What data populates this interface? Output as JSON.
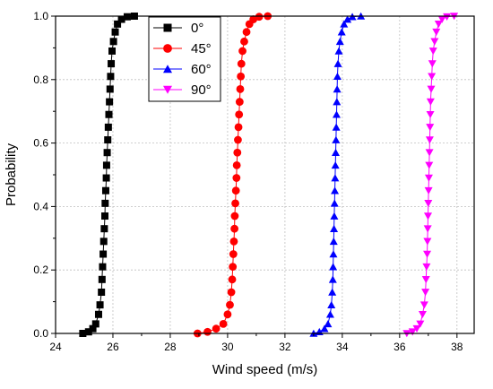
{
  "chart_data": {
    "type": "line",
    "xlabel": "Wind speed (m/s)",
    "ylabel": "Probability",
    "xlim": [
      24,
      38.6
    ],
    "ylim": [
      0.0,
      1.0
    ],
    "x_ticks": [
      "24",
      "26",
      "28",
      "30",
      "32",
      "34",
      "36",
      "38"
    ],
    "y_ticks": [
      "0.0",
      "0.2",
      "0.4",
      "0.6",
      "0.8",
      "1.0"
    ],
    "grid": true,
    "legend_position": "top-left inside plot",
    "series": [
      {
        "name": "0°",
        "color": "#000000",
        "marker": "square",
        "points": [
          [
            24.95,
            0.0
          ],
          [
            25.15,
            0.005
          ],
          [
            25.3,
            0.015
          ],
          [
            25.4,
            0.03
          ],
          [
            25.5,
            0.06
          ],
          [
            25.55,
            0.09
          ],
          [
            25.6,
            0.13
          ],
          [
            25.62,
            0.17
          ],
          [
            25.64,
            0.21
          ],
          [
            25.66,
            0.25
          ],
          [
            25.68,
            0.29
          ],
          [
            25.7,
            0.33
          ],
          [
            25.72,
            0.37
          ],
          [
            25.73,
            0.41
          ],
          [
            25.75,
            0.45
          ],
          [
            25.77,
            0.49
          ],
          [
            25.78,
            0.53
          ],
          [
            25.8,
            0.57
          ],
          [
            25.82,
            0.61
          ],
          [
            25.84,
            0.65
          ],
          [
            25.86,
            0.69
          ],
          [
            25.88,
            0.73
          ],
          [
            25.9,
            0.77
          ],
          [
            25.92,
            0.81
          ],
          [
            25.94,
            0.85
          ],
          [
            25.97,
            0.89
          ],
          [
            26.02,
            0.92
          ],
          [
            26.08,
            0.95
          ],
          [
            26.16,
            0.975
          ],
          [
            26.3,
            0.99
          ],
          [
            26.5,
            0.998
          ],
          [
            26.75,
            1.0
          ]
        ]
      },
      {
        "name": "45°",
        "color": "#ff0000",
        "marker": "circle",
        "points": [
          [
            28.95,
            0.0
          ],
          [
            29.3,
            0.005
          ],
          [
            29.6,
            0.015
          ],
          [
            29.85,
            0.03
          ],
          [
            30.0,
            0.06
          ],
          [
            30.08,
            0.09
          ],
          [
            30.13,
            0.13
          ],
          [
            30.16,
            0.17
          ],
          [
            30.18,
            0.21
          ],
          [
            30.2,
            0.25
          ],
          [
            30.22,
            0.29
          ],
          [
            30.24,
            0.33
          ],
          [
            30.25,
            0.37
          ],
          [
            30.27,
            0.41
          ],
          [
            30.29,
            0.45
          ],
          [
            30.31,
            0.49
          ],
          [
            30.32,
            0.53
          ],
          [
            30.34,
            0.57
          ],
          [
            30.36,
            0.61
          ],
          [
            30.38,
            0.65
          ],
          [
            30.4,
            0.69
          ],
          [
            30.42,
            0.73
          ],
          [
            30.44,
            0.77
          ],
          [
            30.46,
            0.81
          ],
          [
            30.48,
            0.85
          ],
          [
            30.52,
            0.89
          ],
          [
            30.58,
            0.92
          ],
          [
            30.66,
            0.95
          ],
          [
            30.76,
            0.975
          ],
          [
            30.9,
            0.99
          ],
          [
            31.1,
            0.998
          ],
          [
            31.4,
            1.0
          ]
        ]
      },
      {
        "name": "60°",
        "color": "#0000ff",
        "marker": "triangle-up",
        "points": [
          [
            33.0,
            0.0
          ],
          [
            33.2,
            0.005
          ],
          [
            33.38,
            0.015
          ],
          [
            33.5,
            0.03
          ],
          [
            33.58,
            0.06
          ],
          [
            33.62,
            0.09
          ],
          [
            33.65,
            0.13
          ],
          [
            33.67,
            0.17
          ],
          [
            33.68,
            0.21
          ],
          [
            33.69,
            0.25
          ],
          [
            33.7,
            0.29
          ],
          [
            33.71,
            0.33
          ],
          [
            33.72,
            0.37
          ],
          [
            33.73,
            0.41
          ],
          [
            33.74,
            0.45
          ],
          [
            33.75,
            0.49
          ],
          [
            33.76,
            0.53
          ],
          [
            33.77,
            0.57
          ],
          [
            33.78,
            0.61
          ],
          [
            33.79,
            0.65
          ],
          [
            33.8,
            0.69
          ],
          [
            33.81,
            0.73
          ],
          [
            33.82,
            0.77
          ],
          [
            33.83,
            0.81
          ],
          [
            33.85,
            0.85
          ],
          [
            33.88,
            0.89
          ],
          [
            33.92,
            0.92
          ],
          [
            33.98,
            0.95
          ],
          [
            34.06,
            0.975
          ],
          [
            34.18,
            0.99
          ],
          [
            34.35,
            0.998
          ],
          [
            34.65,
            1.0
          ]
        ]
      },
      {
        "name": "90°",
        "color": "#ff00ff",
        "marker": "triangle-down",
        "points": [
          [
            36.25,
            0.0
          ],
          [
            36.45,
            0.005
          ],
          [
            36.6,
            0.015
          ],
          [
            36.72,
            0.03
          ],
          [
            36.8,
            0.06
          ],
          [
            36.86,
            0.09
          ],
          [
            36.9,
            0.13
          ],
          [
            36.92,
            0.17
          ],
          [
            36.94,
            0.21
          ],
          [
            36.96,
            0.25
          ],
          [
            36.97,
            0.29
          ],
          [
            36.98,
            0.33
          ],
          [
            36.99,
            0.37
          ],
          [
            37.0,
            0.41
          ],
          [
            37.01,
            0.45
          ],
          [
            37.02,
            0.49
          ],
          [
            37.03,
            0.53
          ],
          [
            37.04,
            0.57
          ],
          [
            37.05,
            0.61
          ],
          [
            37.06,
            0.65
          ],
          [
            37.07,
            0.69
          ],
          [
            37.08,
            0.73
          ],
          [
            37.1,
            0.77
          ],
          [
            37.12,
            0.81
          ],
          [
            37.14,
            0.85
          ],
          [
            37.17,
            0.89
          ],
          [
            37.22,
            0.92
          ],
          [
            37.28,
            0.95
          ],
          [
            37.36,
            0.975
          ],
          [
            37.48,
            0.99
          ],
          [
            37.65,
            0.998
          ],
          [
            37.9,
            1.0
          ]
        ]
      }
    ]
  }
}
